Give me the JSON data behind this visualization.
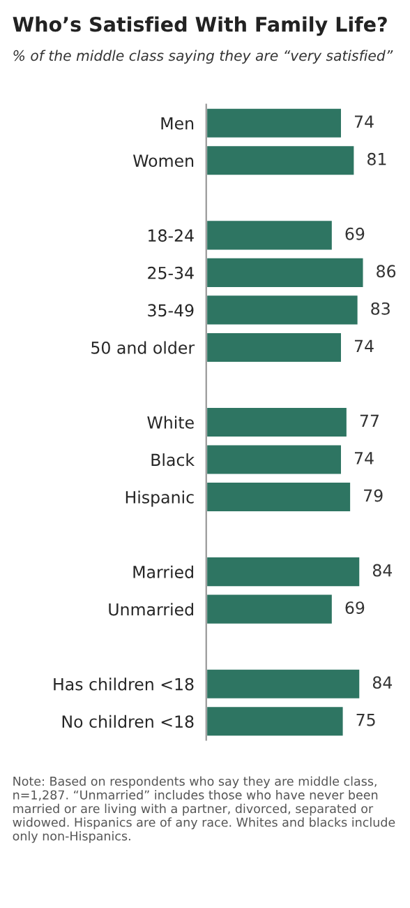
{
  "chart_data": {
    "type": "bar",
    "orientation": "horizontal",
    "title": "Who’s Satisfied With Family Life?",
    "subtitle": "% of the middle class saying they are “very satisfied”",
    "categories": [
      "Men",
      "Women",
      null,
      "18-24",
      "25-34",
      "35-49",
      "50 and older",
      null,
      "White",
      "Black",
      "Hispanic",
      null,
      "Married",
      "Unmarried",
      null,
      "Has children <18",
      "No children <18"
    ],
    "values": [
      74,
      81,
      null,
      69,
      86,
      83,
      74,
      null,
      77,
      74,
      79,
      null,
      84,
      69,
      null,
      84,
      75
    ],
    "color": "#2e7562",
    "data_labels": true,
    "tick_labels": "y",
    "grid": false,
    "legend": false,
    "annotations": [
      "Note: Based on respondents who say they are middle class, n=1,287. “Unmarried” includes those who have never been married or are living with a partner, divorced, separated or widowed. Hispanics are of any race. Whites and blacks include only non-Hispanics."
    ]
  }
}
